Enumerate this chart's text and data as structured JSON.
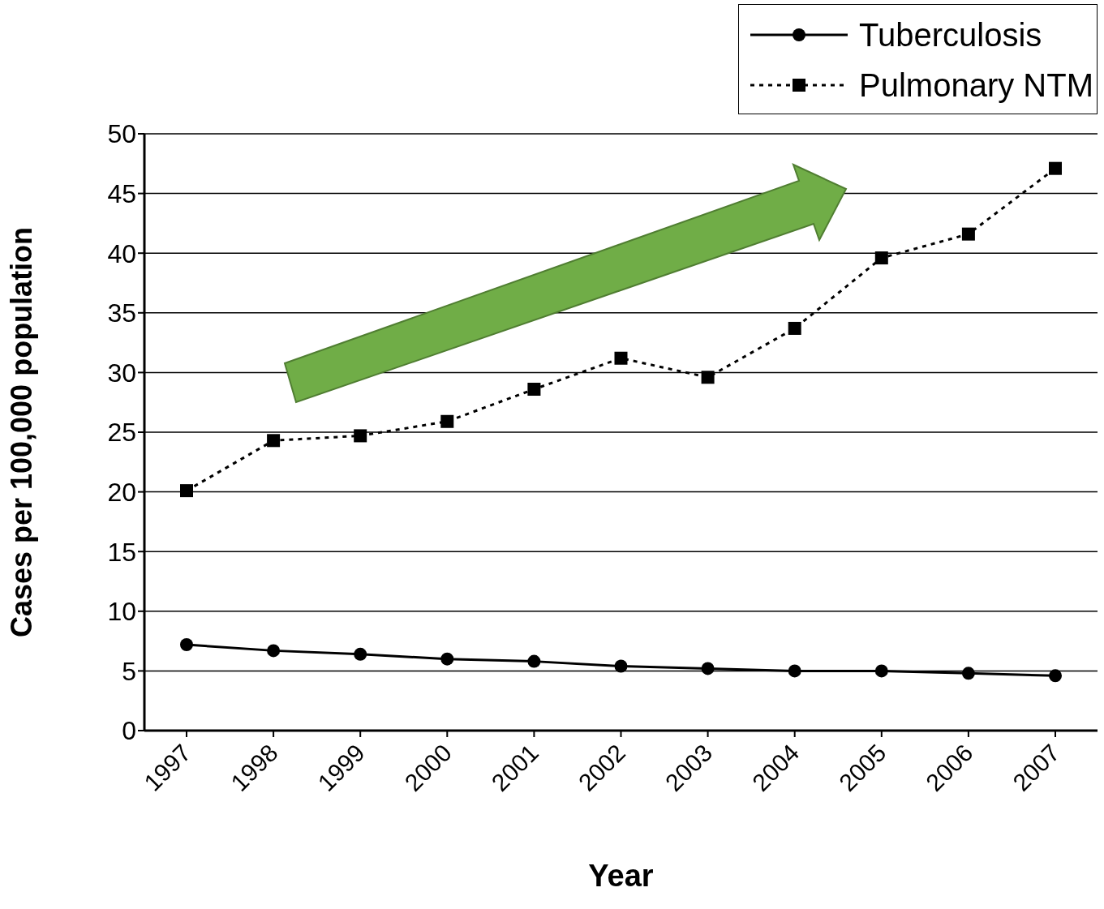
{
  "chart_data": {
    "type": "line",
    "xlabel": "Year",
    "ylabel": "Cases per 100,000 population",
    "categories": [
      "1997",
      "1998",
      "1999",
      "2000",
      "2001",
      "2002",
      "2003",
      "2004",
      "2005",
      "2006",
      "2007"
    ],
    "series": [
      {
        "name": "Tuberculosis",
        "color": "#000000",
        "marker": "circle",
        "line_style": "solid",
        "values": [
          7.2,
          6.7,
          6.4,
          6.0,
          5.8,
          5.4,
          5.2,
          5.0,
          5.0,
          4.8,
          4.6
        ]
      },
      {
        "name": "Pulmonary NTM",
        "color": "#000000",
        "marker": "square",
        "line_style": "dotted",
        "values": [
          20.1,
          24.3,
          24.7,
          25.9,
          28.6,
          31.2,
          29.6,
          33.7,
          39.6,
          41.6,
          47.1
        ]
      }
    ],
    "ylim": [
      0,
      50
    ],
    "yticks": [
      0,
      5,
      10,
      15,
      20,
      25,
      30,
      35,
      40,
      45,
      50
    ],
    "grid": "y",
    "legend": "top right"
  }
}
